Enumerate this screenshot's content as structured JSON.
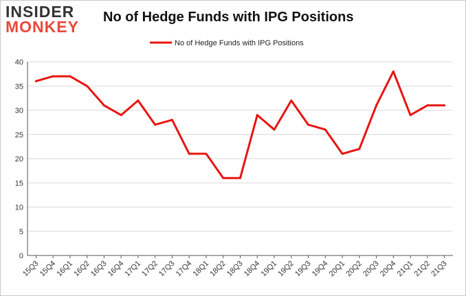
{
  "brand": {
    "line1": "INSIDER",
    "line2": "MONKEY"
  },
  "colors": {
    "series": "#e8140f",
    "grid": "#d9d9d9",
    "axis": "#555555"
  },
  "chart_data": {
    "type": "line",
    "title": "No of Hedge Funds with IPG Positions",
    "xlabel": "",
    "ylabel": "",
    "ylim": [
      0,
      40
    ],
    "yticks": [
      0,
      5,
      10,
      15,
      20,
      25,
      30,
      35,
      40
    ],
    "grid": true,
    "legend": "top-center",
    "categories": [
      "15Q3",
      "15Q4",
      "16Q1",
      "16Q2",
      "16Q3",
      "16Q4",
      "17Q1",
      "17Q2",
      "17Q3",
      "17Q4",
      "18Q1",
      "18Q2",
      "18Q3",
      "18Q4",
      "19Q1",
      "19Q2",
      "19Q3",
      "19Q4",
      "20Q1",
      "20Q2",
      "20Q3",
      "20Q4",
      "21Q1",
      "21Q2",
      "21Q3"
    ],
    "series": [
      {
        "name": "No of Hedge Funds with IPG Positions",
        "values": [
          36,
          37,
          37,
          35,
          31,
          29,
          32,
          27,
          28,
          21,
          21,
          16,
          16,
          29,
          26,
          32,
          27,
          26,
          21,
          22,
          31,
          38,
          29,
          31,
          31
        ]
      }
    ]
  }
}
